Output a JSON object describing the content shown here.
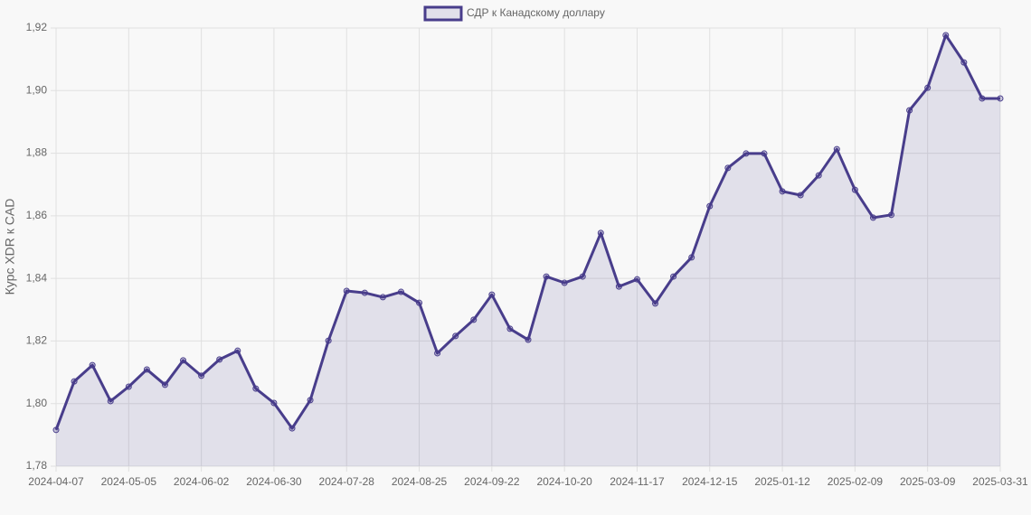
{
  "chart_data": {
    "type": "line",
    "y_label": "Курс XDR к CAD",
    "categories": [
      "2024-04-07",
      null,
      null,
      null,
      "2024-05-05",
      null,
      null,
      null,
      "2024-06-02",
      null,
      null,
      null,
      "2024-06-30",
      null,
      null,
      null,
      "2024-07-28",
      null,
      null,
      null,
      "2024-08-25",
      null,
      null,
      null,
      "2024-09-22",
      null,
      null,
      null,
      "2024-10-20",
      null,
      null,
      null,
      "2024-11-17",
      null,
      null,
      null,
      "2024-12-15",
      null,
      null,
      null,
      "2025-01-12",
      null,
      null,
      null,
      "2025-02-09",
      null,
      null,
      null,
      "2025-03-09",
      null,
      null,
      null,
      "2025-03-31"
    ],
    "series": [
      {
        "name": "СДР к Канадскому доллару",
        "color": "#483d8b",
        "values": [
          1.7916,
          1.8071,
          1.8123,
          1.8008,
          1.8054,
          1.8109,
          1.806,
          1.8138,
          1.8089,
          1.8141,
          1.8169,
          1.8048,
          1.8002,
          1.7921,
          1.8011,
          1.8201,
          1.836,
          1.8354,
          1.834,
          1.8357,
          1.8322,
          1.8161,
          1.8216,
          1.8268,
          1.8348,
          1.8239,
          1.8204,
          1.8406,
          1.8386,
          1.8406,
          1.8545,
          1.8374,
          1.8397,
          1.832,
          1.8406,
          1.8467,
          1.8631,
          1.8753,
          1.8799,
          1.8799,
          1.8678,
          1.8666,
          1.8729,
          1.8813,
          1.8683,
          1.8594,
          1.8603,
          1.8937,
          1.9009,
          1.9177,
          1.909,
          1.8975,
          1.8975
        ]
      }
    ],
    "ylim": [
      1.78,
      1.92
    ],
    "yticks": [
      {
        "value": 1.78,
        "label": "1,78"
      },
      {
        "value": 1.8,
        "label": "1,80"
      },
      {
        "value": 1.82,
        "label": "1,82"
      },
      {
        "value": 1.84,
        "label": "1,84"
      },
      {
        "value": 1.86,
        "label": "1,86"
      },
      {
        "value": 1.88,
        "label": "1,88"
      },
      {
        "value": 1.9,
        "label": "1,90"
      },
      {
        "value": 1.92,
        "label": "1,92"
      }
    ],
    "grid": true,
    "fill": true,
    "legend": "top"
  }
}
